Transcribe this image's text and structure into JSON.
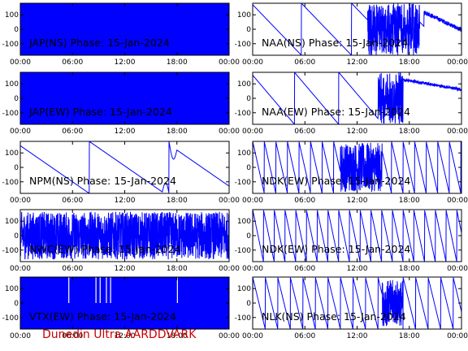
{
  "footer": {
    "text": "Dunedin Ultra AARDDVARK"
  },
  "colors": {
    "trace": "#0000ff",
    "axes": "#000000",
    "footer": "#cc0000"
  },
  "chart_data": [
    {
      "type": "line",
      "title": "JAP(NS) Phase: 15-Jan-2024",
      "pattern": "fill",
      "xticks": [
        "00:00",
        "06:00",
        "12:00",
        "18:00",
        "00:00"
      ],
      "yticks": [
        100,
        0,
        -100
      ],
      "ylim": [
        -180,
        180
      ]
    },
    {
      "type": "line",
      "title": "NAA(NS) Phase: 15-Jan-2024",
      "pattern": "naa",
      "xticks": [
        "00:00",
        "06:00",
        "12:00",
        "18:00",
        "00:00"
      ],
      "yticks": [
        100,
        0,
        -100
      ],
      "ylim": [
        -180,
        180
      ]
    },
    {
      "type": "line",
      "title": "JAP(EW) Phase: 15-Jan-2024",
      "pattern": "fill",
      "xticks": [
        "00:00",
        "06:00",
        "12:00",
        "18:00",
        "00:00"
      ],
      "yticks": [
        100,
        0,
        -100
      ],
      "ylim": [
        -180,
        180
      ]
    },
    {
      "type": "line",
      "title": "NAA(EW) Phase: 15-Jan-2024",
      "pattern": "naa2",
      "xticks": [
        "00:00",
        "06:00",
        "12:00",
        "18:00",
        "00:00"
      ],
      "yticks": [
        100,
        0,
        -100
      ],
      "ylim": [
        -180,
        180
      ]
    },
    {
      "type": "line",
      "title": "NPM(NS) Phase: 15-Jan-2024",
      "pattern": "npm",
      "xticks": [
        "00:00",
        "06:00",
        "12:00",
        "18:00",
        "00:00"
      ],
      "yticks": [
        100,
        0,
        -100
      ],
      "ylim": [
        -180,
        180
      ]
    },
    {
      "type": "line",
      "title": "NDK(EW) Phase: 15-Jan-2024",
      "pattern": "saw",
      "xticks": [
        "00:00",
        "06:00",
        "12:00",
        "18:00",
        "00:00"
      ],
      "yticks": [
        100,
        0,
        -100
      ],
      "ylim": [
        -180,
        180
      ]
    },
    {
      "type": "line",
      "title": "NWC(EW) Phase: 15-Jan-2024",
      "pattern": "noise",
      "xticks": [
        "00:00",
        "06:00",
        "12:00",
        "18:00",
        "00:00"
      ],
      "yticks": [
        100,
        0,
        -100
      ],
      "ylim": [
        -180,
        180
      ]
    },
    {
      "type": "line",
      "title": "NDK(EW) Phase: 15-Jan-2024",
      "pattern": "saw2",
      "xticks": [
        "00:00",
        "06:00",
        "12:00",
        "18:00",
        "00:00"
      ],
      "yticks": [
        100,
        0,
        -100
      ],
      "ylim": [
        -180,
        180
      ]
    },
    {
      "type": "line",
      "title": "VTX(EW) Phase: 15-Jan-2024",
      "pattern": "vtx",
      "xticks": [
        "00:00",
        "06:00",
        "12:00",
        "18:00",
        "00:00"
      ],
      "yticks": [
        100,
        0,
        -100
      ],
      "ylim": [
        -180,
        180
      ]
    },
    {
      "type": "line",
      "title": "NLK(NS) Phase: 15-Jan-2024",
      "pattern": "nlk",
      "xticks": [
        "00:00",
        "06:00",
        "12:00",
        "18:00",
        "00:00"
      ],
      "yticks": [
        100,
        0,
        -100
      ],
      "ylim": [
        -180,
        180
      ]
    }
  ]
}
